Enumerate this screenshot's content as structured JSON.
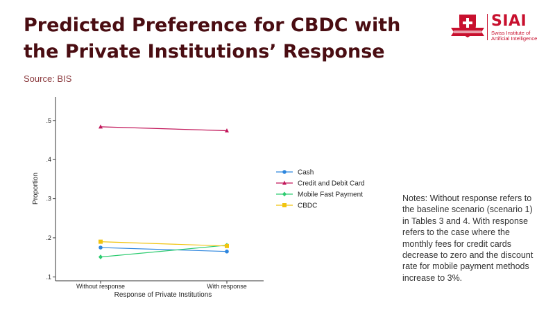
{
  "header": {
    "title": "Predicted Preference for CBDC with the Private Institutions’ Response",
    "source": "Source: BIS"
  },
  "logo": {
    "name": "SIAI",
    "subtitle_line1": "Swiss Institute of",
    "subtitle_line2": "Artificial Intelligence",
    "colors": {
      "brand": "#c8102e"
    }
  },
  "notes": "Notes: Without response refers to the baseline scenario (scenario 1) in Tables 3 and 4. With response refers to the case where the monthly fees for credit cards decrease to zero and the discount rate for mobile payment methods increase to 3%.",
  "chart_data": {
    "type": "line",
    "title": "",
    "xlabel": "Response of Private Institutions",
    "ylabel": "Proportion",
    "categories": [
      "Without response",
      "With response"
    ],
    "ylim": [
      0.09,
      0.56
    ],
    "yticks": [
      0.1,
      0.2,
      0.3,
      0.4,
      0.5
    ],
    "ytick_labels": [
      ".1",
      ".2",
      ".3",
      ".4",
      ".5"
    ],
    "grid": false,
    "legend_position": "right",
    "series": [
      {
        "name": "Cash",
        "values": [
          0.175,
          0.165
        ],
        "color": "#2e86de",
        "marker": "circle"
      },
      {
        "name": "Credit and Debit Card",
        "values": [
          0.484,
          0.474
        ],
        "color": "#c2185b",
        "marker": "triangle"
      },
      {
        "name": "Mobile Fast Payment",
        "values": [
          0.151,
          0.181
        ],
        "color": "#2ecc71",
        "marker": "diamond"
      },
      {
        "name": "CBDC",
        "values": [
          0.19,
          0.179
        ],
        "color": "#f1c40f",
        "marker": "square"
      }
    ]
  }
}
